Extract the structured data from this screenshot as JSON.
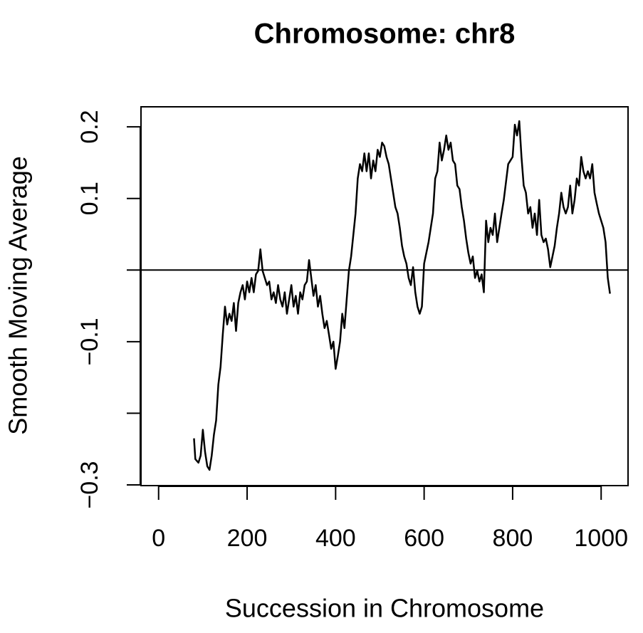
{
  "chart_data": {
    "type": "line",
    "title": "Chromosome: chr8",
    "x_label": "Succession in Chromosome",
    "y_label": "Smooth Moving Average",
    "xlim": [
      -39.8,
      1060.8
    ],
    "xticks": [
      0,
      200,
      400,
      600,
      800,
      1000
    ],
    "ylim": [
      -0.301,
      0.228
    ],
    "yticks": [
      {
        "value": -0.3,
        "label": "−0.3"
      },
      {
        "value": -0.2
      },
      {
        "value": -0.1,
        "label": "−0.1"
      },
      {
        "value": 0
      },
      0.1,
      0.2
    ],
    "reference_line": 0,
    "x": [
      80,
      83,
      90,
      95,
      100,
      105,
      110,
      115,
      120,
      125,
      130,
      135,
      140,
      145,
      150,
      155,
      160,
      165,
      170,
      175,
      180,
      185,
      190,
      195,
      200,
      205,
      210,
      215,
      220,
      225,
      230,
      235,
      240,
      245,
      250,
      255,
      260,
      265,
      270,
      275,
      280,
      285,
      290,
      295,
      300,
      305,
      310,
      315,
      320,
      325,
      330,
      335,
      340,
      345,
      350,
      355,
      360,
      365,
      370,
      375,
      380,
      385,
      390,
      395,
      400,
      405,
      410,
      415,
      420,
      425,
      430,
      435,
      440,
      445,
      450,
      455,
      460,
      465,
      470,
      475,
      480,
      485,
      490,
      495,
      500,
      505,
      510,
      515,
      520,
      525,
      530,
      535,
      540,
      545,
      550,
      555,
      560,
      565,
      570,
      575,
      580,
      585,
      590,
      595,
      600,
      605,
      610,
      615,
      620,
      625,
      630,
      635,
      640,
      645,
      650,
      655,
      660,
      665,
      670,
      675,
      680,
      685,
      690,
      695,
      700,
      705,
      710,
      715,
      720,
      725,
      730,
      735,
      740,
      745,
      750,
      755,
      760,
      765,
      770,
      775,
      780,
      785,
      790,
      795,
      800,
      805,
      810,
      815,
      820,
      825,
      830,
      835,
      840,
      845,
      850,
      855,
      860,
      865,
      870,
      875,
      880,
      885,
      890,
      895,
      900,
      905,
      910,
      915,
      920,
      925,
      930,
      935,
      940,
      945,
      950,
      955,
      960,
      965,
      970,
      975,
      980,
      985,
      990,
      995,
      1000,
      1005,
      1010,
      1015,
      1020
    ],
    "series": [
      {
        "color": "#000000",
        "values": [
          -0.235,
          -0.264,
          -0.269,
          -0.259,
          -0.223,
          -0.254,
          -0.274,
          -0.279,
          -0.259,
          -0.23,
          -0.21,
          -0.16,
          -0.135,
          -0.09,
          -0.051,
          -0.076,
          -0.061,
          -0.071,
          -0.046,
          -0.085,
          -0.046,
          -0.031,
          -0.021,
          -0.041,
          -0.016,
          -0.031,
          -0.011,
          -0.031,
          -0.006,
          -0.001,
          0.029,
          -0.001,
          -0.011,
          -0.021,
          -0.016,
          -0.041,
          -0.031,
          -0.046,
          -0.021,
          -0.041,
          -0.051,
          -0.031,
          -0.061,
          -0.041,
          -0.021,
          -0.051,
          -0.036,
          -0.061,
          -0.031,
          -0.041,
          -0.021,
          -0.016,
          0.014,
          -0.011,
          -0.036,
          -0.021,
          -0.051,
          -0.036,
          -0.061,
          -0.081,
          -0.071,
          -0.09,
          -0.11,
          -0.1,
          -0.138,
          -0.12,
          -0.1,
          -0.061,
          -0.081,
          -0.041,
          -0.001,
          0.019,
          0.049,
          0.079,
          0.128,
          0.148,
          0.138,
          0.163,
          0.138,
          0.163,
          0.128,
          0.153,
          0.138,
          0.168,
          0.158,
          0.178,
          0.173,
          0.158,
          0.148,
          0.128,
          0.108,
          0.088,
          0.079,
          0.059,
          0.034,
          0.019,
          0.009,
          -0.011,
          -0.021,
          0.004,
          -0.031,
          -0.051,
          -0.061,
          -0.051,
          0.009,
          0.024,
          0.039,
          0.059,
          0.079,
          0.128,
          0.138,
          0.178,
          0.153,
          0.168,
          0.188,
          0.168,
          0.178,
          0.153,
          0.148,
          0.118,
          0.113,
          0.088,
          0.069,
          0.044,
          0.024,
          0.009,
          0.019,
          -0.011,
          -0.001,
          -0.016,
          -0.006,
          -0.031,
          0.069,
          0.039,
          0.059,
          0.049,
          0.079,
          0.039,
          0.059,
          0.079,
          0.098,
          0.123,
          0.148,
          0.153,
          0.158,
          0.203,
          0.188,
          0.208,
          0.158,
          0.118,
          0.108,
          0.079,
          0.088,
          0.059,
          0.079,
          0.049,
          0.098,
          0.049,
          0.039,
          0.044,
          0.029,
          0.004,
          0.019,
          0.034,
          0.059,
          0.079,
          0.108,
          0.088,
          0.079,
          0.088,
          0.118,
          0.079,
          0.098,
          0.128,
          0.118,
          0.158,
          0.138,
          0.128,
          0.138,
          0.128,
          0.148,
          0.108,
          0.093,
          0.079,
          0.069,
          0.059,
          0.039,
          -0.011,
          -0.033
        ]
      }
    ]
  }
}
